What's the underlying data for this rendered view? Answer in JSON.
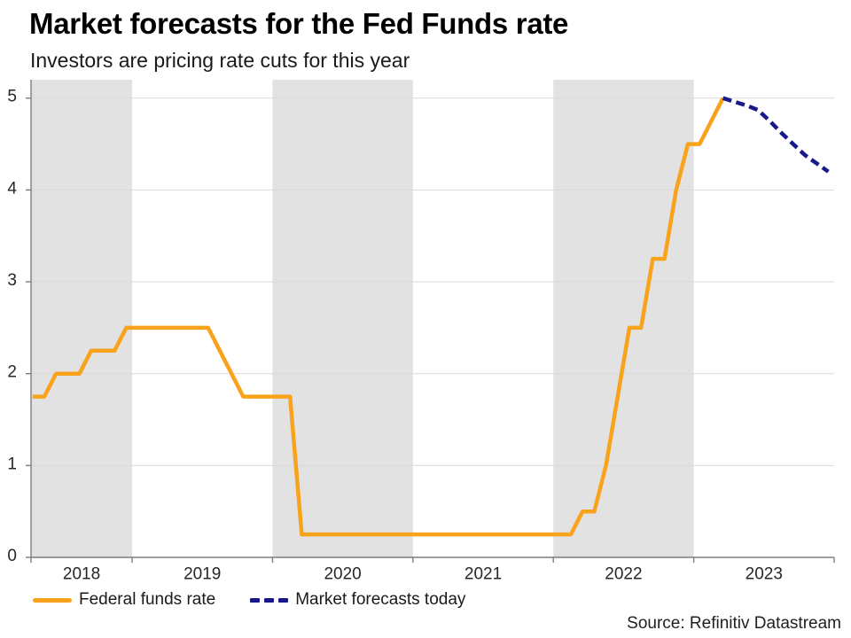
{
  "chart_data": {
    "type": "line",
    "title": "Market forecasts for the Fed Funds rate",
    "subtitle": "Investors are pricing rate cuts for this year",
    "source": "Source: Refinitiv Datastream",
    "x_domain_decimal_years": [
      2018.28,
      2024.0
    ],
    "ylim": [
      0,
      5.2
    ],
    "y_ticks": [
      0,
      1,
      2,
      3,
      4,
      5
    ],
    "x_year_boundaries_ticks": [
      2019,
      2020,
      2021,
      2022,
      2023,
      2024
    ],
    "x_year_labels": [
      2018,
      2019,
      2020,
      2021,
      2022,
      2023
    ],
    "shaded_years": [
      2018,
      2020,
      2022
    ],
    "grid": true,
    "legend_position": "bottom-left",
    "style": {
      "band_fill": "#E2E2E2",
      "gridline": "#D9D9D9",
      "axis": "#7D7D7D",
      "label_color": "#262626"
    },
    "series": [
      {
        "name": "Federal funds rate",
        "style": "solid",
        "color": "#F9A21B",
        "points": [
          [
            "2018-04",
            1.75
          ],
          [
            "2018-05",
            1.75
          ],
          [
            "2018-06",
            2.0
          ],
          [
            "2018-07",
            2.0
          ],
          [
            "2018-08",
            2.0
          ],
          [
            "2018-09",
            2.25
          ],
          [
            "2018-10",
            2.25
          ],
          [
            "2018-11",
            2.25
          ],
          [
            "2018-12",
            2.5
          ],
          [
            "2019-01",
            2.5
          ],
          [
            "2019-02",
            2.5
          ],
          [
            "2019-03",
            2.5
          ],
          [
            "2019-04",
            2.5
          ],
          [
            "2019-05",
            2.5
          ],
          [
            "2019-06",
            2.5
          ],
          [
            "2019-07",
            2.5
          ],
          [
            "2019-08",
            2.25
          ],
          [
            "2019-09",
            2.0
          ],
          [
            "2019-10",
            1.75
          ],
          [
            "2019-11",
            1.75
          ],
          [
            "2019-12",
            1.75
          ],
          [
            "2020-01",
            1.75
          ],
          [
            "2020-02",
            1.75
          ],
          [
            "2020-03",
            0.25
          ],
          [
            "2020-06",
            0.25
          ],
          [
            "2020-09",
            0.25
          ],
          [
            "2020-12",
            0.25
          ],
          [
            "2021-03",
            0.25
          ],
          [
            "2021-06",
            0.25
          ],
          [
            "2021-09",
            0.25
          ],
          [
            "2021-12",
            0.25
          ],
          [
            "2022-01",
            0.25
          ],
          [
            "2022-02",
            0.25
          ],
          [
            "2022-03",
            0.5
          ],
          [
            "2022-04",
            0.5
          ],
          [
            "2022-05",
            1.0
          ],
          [
            "2022-06",
            1.75
          ],
          [
            "2022-07",
            2.5
          ],
          [
            "2022-08",
            2.5
          ],
          [
            "2022-09",
            3.25
          ],
          [
            "2022-10",
            3.25
          ],
          [
            "2022-11",
            4.0
          ],
          [
            "2022-12",
            4.5
          ],
          [
            "2023-01",
            4.5
          ],
          [
            "2023-02",
            4.75
          ],
          [
            "2023-03",
            5.0
          ]
        ]
      },
      {
        "name": "Market forecasts today",
        "style": "dashed",
        "color": "#19198C",
        "points": [
          [
            "2023-03",
            5.0
          ],
          [
            "2023-04",
            4.96
          ],
          [
            "2023-05",
            4.92
          ],
          [
            "2023-06",
            4.87
          ],
          [
            "2023-07",
            4.75
          ],
          [
            "2023-08",
            4.62
          ],
          [
            "2023-09",
            4.5
          ],
          [
            "2023-10",
            4.38
          ],
          [
            "2023-11",
            4.29
          ],
          [
            "2023-12",
            4.2
          ]
        ]
      }
    ]
  }
}
